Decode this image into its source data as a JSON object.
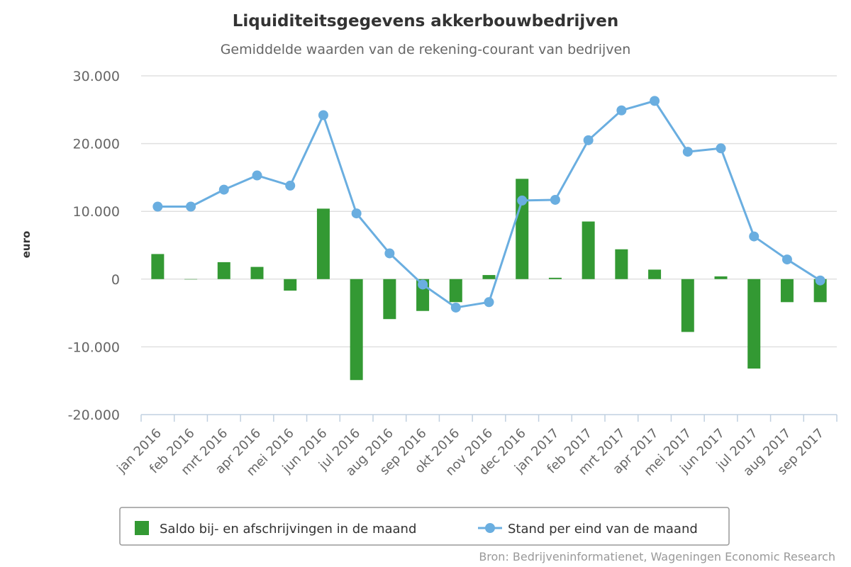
{
  "chart_data": {
    "type": "bar",
    "title": "Liquiditeitsgegevens akkerbouwbedrijven",
    "subtitle": "Gemiddelde waarden van de rekening-courant van bedrijven",
    "ylabel": "euro",
    "xlabel": "",
    "source": "Bron: Bedrijveninformatienet, Wageningen Economic Research",
    "ylim": [
      -20000,
      30000
    ],
    "yticks": [
      30000,
      20000,
      10000,
      0,
      -10000,
      -20000
    ],
    "ytick_labels": [
      "30.000",
      "20.000",
      "10.000",
      "0",
      "-10.000",
      "-20.000"
    ],
    "grid": true,
    "legend_position": "bottom",
    "categories": [
      "jan 2016",
      "feb 2016",
      "mrt 2016",
      "apr 2016",
      "mei 2016",
      "jun 2016",
      "jul 2016",
      "aug 2016",
      "sep 2016",
      "okt 2016",
      "nov 2016",
      "dec 2016",
      "jan 2017",
      "feb 2017",
      "mrt 2017",
      "apr 2017",
      "mei 2017",
      "jun 2017",
      "jul 2017",
      "aug 2017",
      "sep 2017"
    ],
    "series": [
      {
        "name": "Saldo bij- en afschrijvingen in de maand",
        "type": "bar",
        "color": "#339933",
        "values": [
          3700,
          0,
          2500,
          1800,
          -1700,
          10400,
          -14900,
          -5900,
          -4700,
          -3400,
          600,
          14800,
          200,
          8500,
          4400,
          1400,
          -7800,
          400,
          -13200,
          -3400,
          -3400
        ]
      },
      {
        "name": "Stand per eind van de maand",
        "type": "line",
        "color": "#6aaee0",
        "values": [
          10700,
          10700,
          13200,
          15300,
          13800,
          24200,
          9700,
          3800,
          -800,
          -4200,
          -3400,
          11600,
          11700,
          20500,
          24900,
          26300,
          18800,
          19300,
          6300,
          2900,
          -200
        ]
      }
    ]
  }
}
